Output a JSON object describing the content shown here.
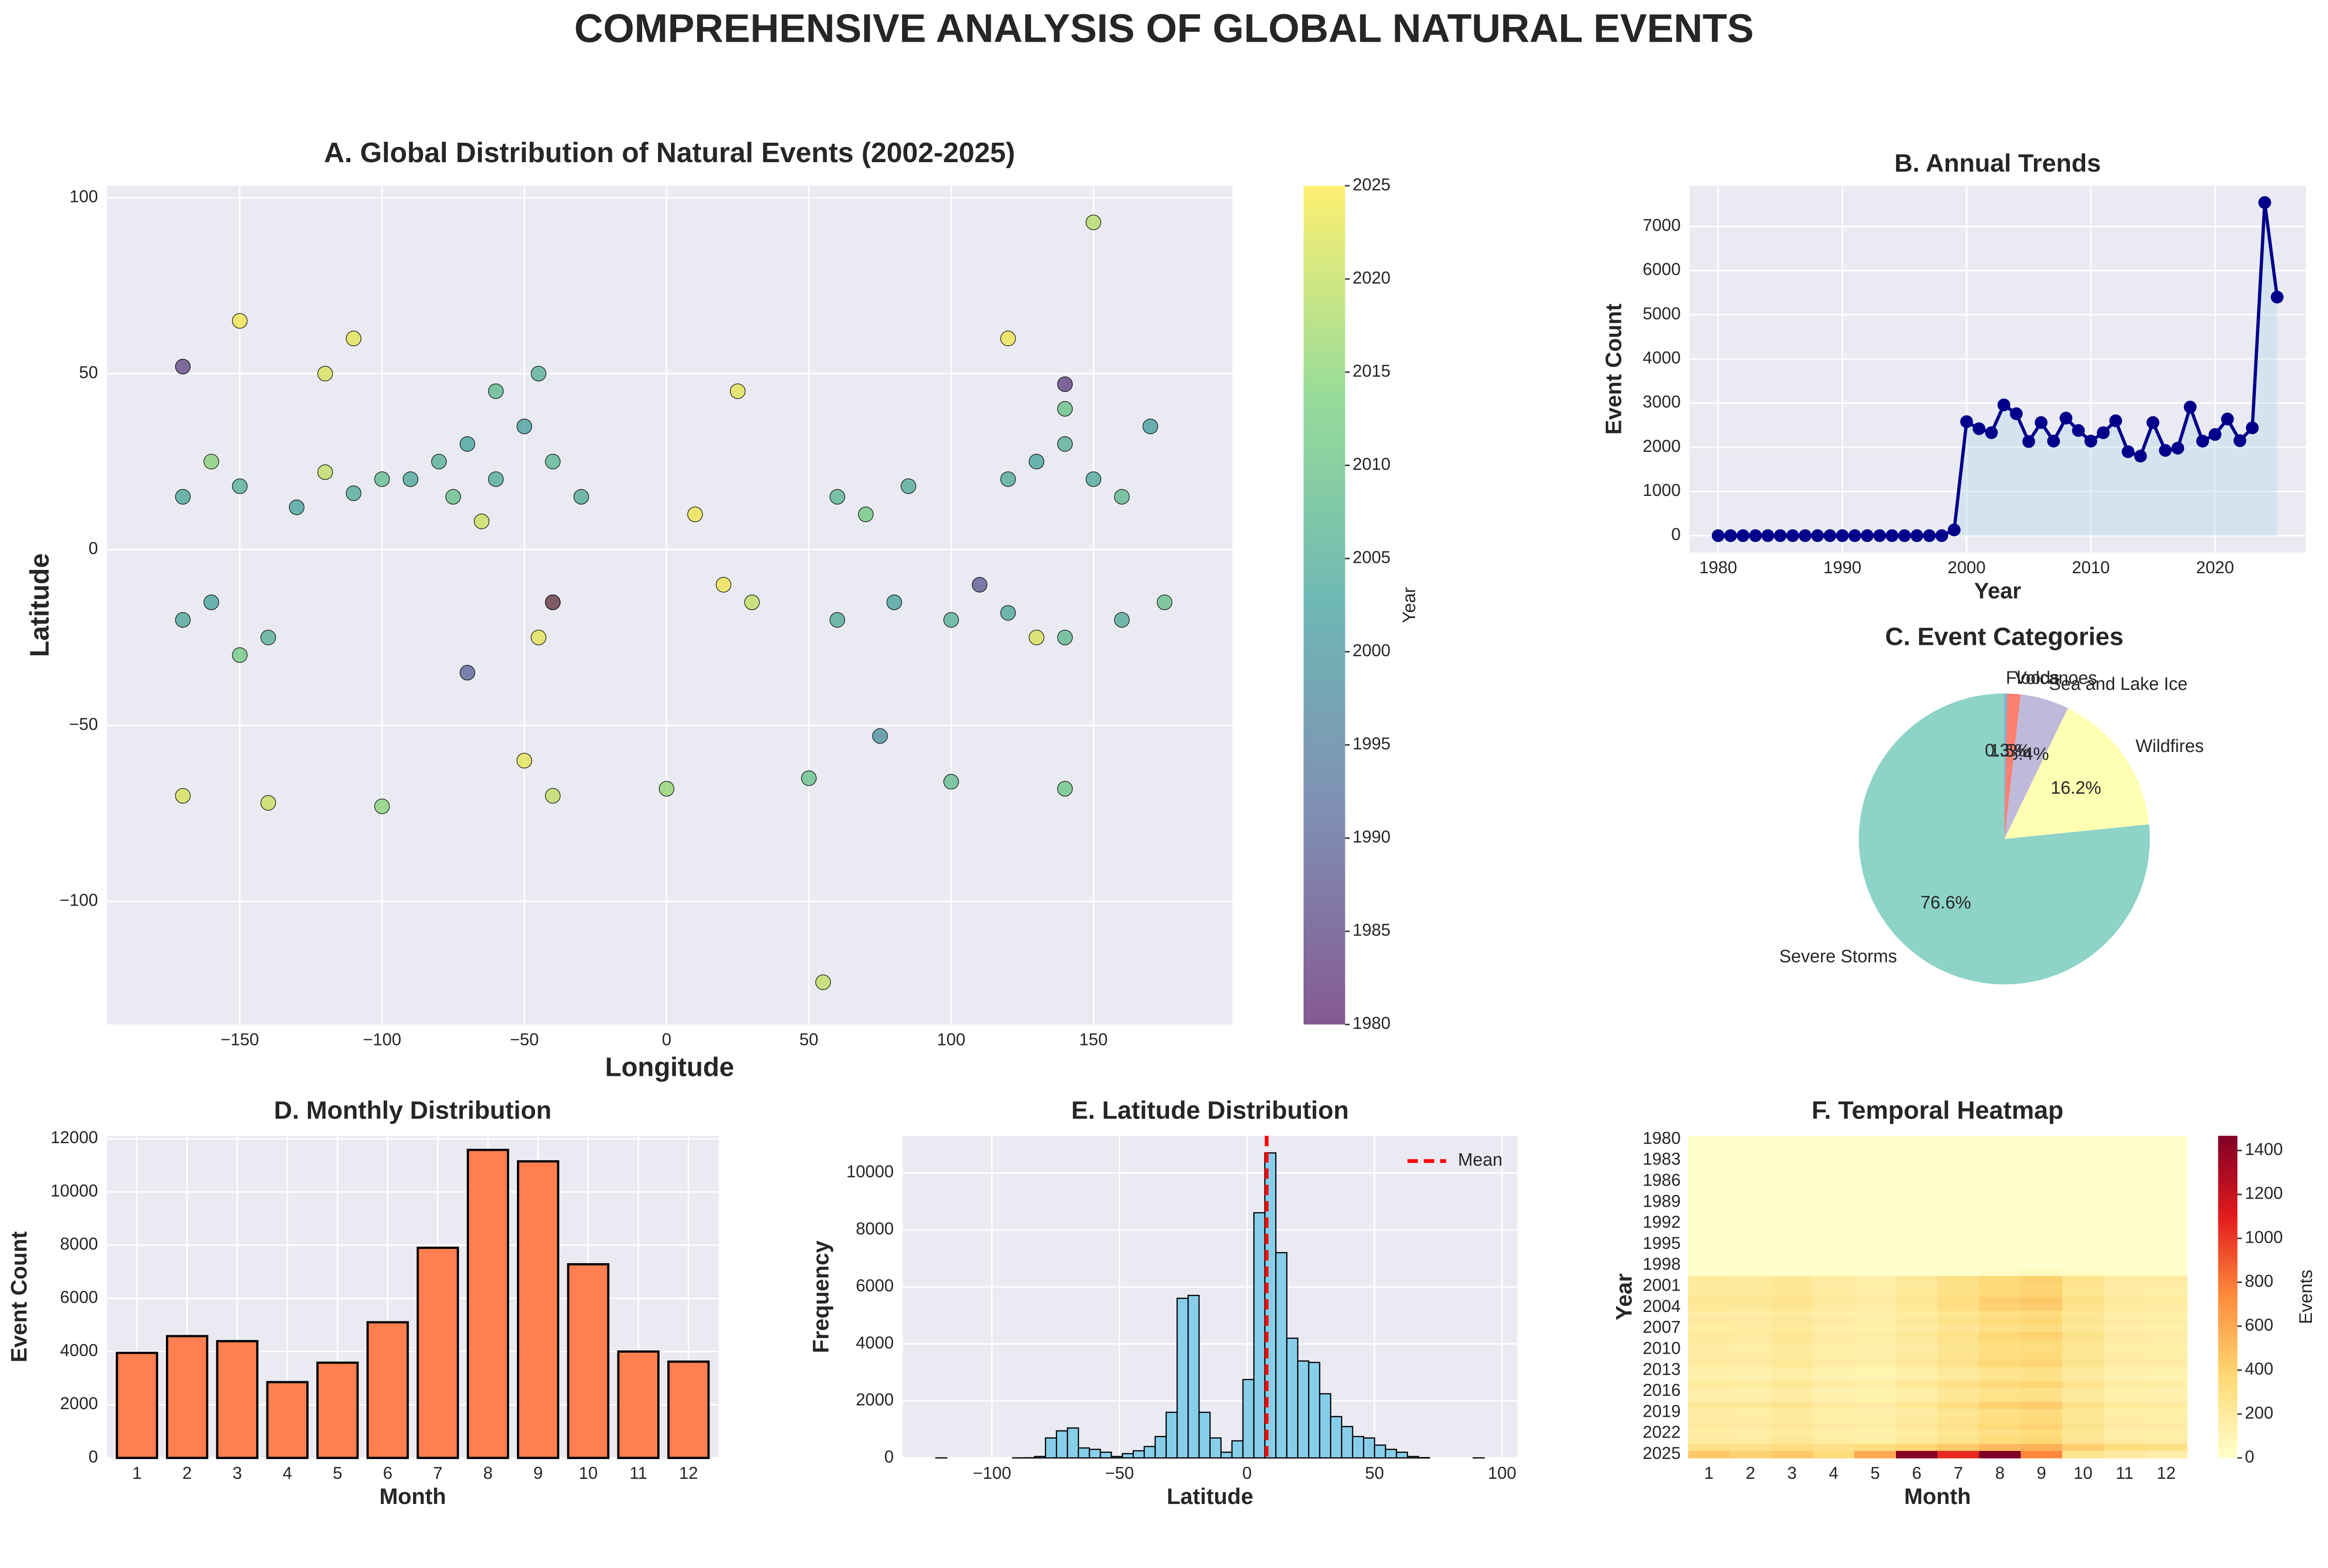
{
  "title": "COMPREHENSIVE ANALYSIS OF GLOBAL NATURAL EVENTS",
  "chart_data": [
    {
      "type": "scatter",
      "title": "A. Global Distribution of Natural Events (2002-2025)",
      "xlabel": "Longitude",
      "ylabel": "Latitude",
      "x": [
        -90,
        -80,
        -70,
        -60,
        -50,
        -40,
        -30,
        -60,
        -45,
        -75,
        -170,
        -150,
        -130,
        -110,
        -100,
        -160,
        -120,
        120,
        130,
        140,
        150,
        160,
        170,
        140,
        60,
        85,
        70,
        30,
        60,
        80,
        100,
        120,
        140,
        160,
        175,
        -170,
        -160,
        -140,
        -150,
        -120,
        -110,
        -150,
        -40,
        -45,
        20,
        25,
        120,
        130,
        -65,
        10,
        -170,
        -140,
        -100,
        -50,
        -40,
        0,
        50,
        100,
        140,
        -170,
        -40,
        -70,
        110,
        140,
        150,
        55,
        75
      ],
      "values": [
        20,
        25,
        30,
        20,
        35,
        25,
        15,
        45,
        50,
        15,
        15,
        18,
        12,
        16,
        20,
        25,
        22,
        20,
        25,
        30,
        20,
        15,
        35,
        40,
        15,
        18,
        10,
        -15,
        -20,
        -15,
        -20,
        -18,
        -25,
        -20,
        -15,
        -20,
        -15,
        -25,
        -30,
        50,
        60,
        65,
        -15,
        -25,
        -10,
        45,
        60,
        -25,
        8,
        10,
        -70,
        -72,
        -73,
        -60,
        -70,
        -68,
        -65,
        -66,
        -68,
        52,
        -15,
        -35,
        -10,
        47,
        93,
        -123,
        -53
      ],
      "years": [
        2004,
        2006,
        2003,
        2005,
        2002,
        2007,
        2005,
        2008,
        2006,
        2010,
        2004,
        2006,
        2003,
        2005,
        2009,
        2015,
        2020,
        2005,
        2003,
        2006,
        2004,
        2008,
        2002,
        2010,
        2007,
        2005,
        2012,
        2020,
        2005,
        2003,
        2006,
        2004,
        2008,
        2005,
        2010,
        2004,
        2003,
        2006,
        2012,
        2022,
        2023,
        2024,
        2024,
        2023,
        2024,
        2023,
        2024,
        2022,
        2021,
        2024,
        2022,
        2021,
        2015,
        2023,
        2020,
        2016,
        2010,
        2009,
        2011,
        1985,
        1982,
        1990,
        1988,
        1984,
        2019,
        2020,
        1999
      ],
      "colormap": "viridis",
      "clim": [
        1980,
        2025
      ],
      "colorbar_label": "Year",
      "cticks": [
        1980,
        1985,
        1990,
        1995,
        2000,
        2005,
        2010,
        2015,
        2020,
        2025
      ],
      "xlim": [
        -196.7,
        198.8
      ],
      "ylim": [
        -135,
        103.4
      ],
      "xticks": [
        {
          "value": -150,
          "label": "−150"
        },
        {
          "value": -100,
          "label": "−100"
        },
        {
          "value": -50,
          "label": "−50"
        },
        0,
        50,
        100,
        150
      ],
      "yticks": [
        {
          "value": -100,
          "label": "−100"
        },
        {
          "value": -50,
          "label": "−50"
        },
        0,
        50,
        100
      ],
      "grid": true
    },
    {
      "type": "line",
      "title": "B. Annual Trends",
      "xlabel": "Year",
      "ylabel": "Event Count",
      "color": "#00008b",
      "area": true,
      "x": [
        1980,
        1981,
        1982,
        1983,
        1984,
        1985,
        1986,
        1987,
        1988,
        1989,
        1990,
        1991,
        1992,
        1993,
        1994,
        1995,
        1996,
        1997,
        1998,
        1999,
        2000,
        2001,
        2002,
        2003,
        2004,
        2005,
        2006,
        2007,
        2008,
        2009,
        2010,
        2011,
        2012,
        2013,
        2014,
        2015,
        2016,
        2017,
        2018,
        2019,
        2020,
        2021,
        2022,
        2023,
        2024,
        2025
      ],
      "values": [
        0,
        0,
        0,
        0,
        0,
        0,
        0,
        0,
        0,
        0,
        0,
        0,
        0,
        0,
        0,
        0,
        0,
        0,
        0,
        130,
        2580,
        2420,
        2330,
        2960,
        2760,
        2130,
        2560,
        2140,
        2660,
        2380,
        2140,
        2330,
        2600,
        1900,
        1800,
        2560,
        1930,
        1980,
        2910,
        2140,
        2290,
        2640,
        2150,
        2440,
        7540,
        5400
      ],
      "xlim": [
        1977.7,
        2027.3
      ],
      "ylim": [
        -380,
        7920
      ],
      "xticks": [
        1980,
        1990,
        2000,
        2010,
        2020
      ],
      "yticks": [
        0,
        1000,
        2000,
        3000,
        4000,
        5000,
        6000,
        7000
      ],
      "grid": true
    },
    {
      "type": "pie",
      "title": "C. Event Categories",
      "categories": [
        "Severe Storms",
        "Wildfires",
        "Sea and Lake Ice",
        "Volcanoes",
        "Floods"
      ],
      "values": [
        76.6,
        16.2,
        5.4,
        1.5,
        0.3
      ],
      "value_labels": [
        "76.6%",
        "16.2%",
        "5.4%",
        "1.5%",
        "0.3%"
      ],
      "colors": [
        "#8dd3c7",
        "#ffffb3",
        "#bebada",
        "#fb8072",
        "#80b1d3"
      ]
    },
    {
      "type": "bar",
      "title": "D. Monthly Distribution",
      "xlabel": "Month",
      "ylabel": "Event Count",
      "color": "#ff7f50",
      "categories": [
        "1",
        "2",
        "3",
        "4",
        "5",
        "6",
        "7",
        "8",
        "9",
        "10",
        "11",
        "12"
      ],
      "values": [
        3950,
        4580,
        4390,
        2850,
        3580,
        5100,
        7900,
        11580,
        11150,
        7280,
        4000,
        3620
      ],
      "ylim": [
        0,
        12110
      ],
      "yticks": [
        0,
        2000,
        4000,
        6000,
        8000,
        10000,
        12000
      ],
      "grid": true
    },
    {
      "type": "histogram",
      "title": "E. Latitude Distribution",
      "xlabel": "Latitude",
      "ylabel": "Frequency",
      "color": "#87ceeb",
      "bins": [
        -122,
        -117.7,
        -113.4,
        -109.1,
        -104.8,
        -100.5,
        -96.2,
        -91.9,
        -87.6,
        -83.3,
        -79,
        -74.7,
        -70.4,
        -66.1,
        -61.8,
        -57.5,
        -53.2,
        -48.9,
        -44.6,
        -40.3,
        -36,
        -31.7,
        -27.4,
        -23.1,
        -18.8,
        -14.5,
        -10.2,
        -5.9,
        -1.6,
        2.7,
        7,
        11.3,
        15.6,
        19.9,
        24.2,
        28.5,
        32.8,
        37.1,
        41.4,
        45.7,
        50,
        54.3,
        58.6,
        62.9,
        67.2,
        71.5,
        75.8,
        80.1,
        84.4,
        88.7,
        93
      ],
      "values": [
        1,
        0,
        0,
        0,
        0,
        0,
        0,
        2,
        5,
        50,
        700,
        950,
        1050,
        350,
        300,
        200,
        50,
        150,
        250,
        400,
        750,
        1600,
        5600,
        5700,
        1600,
        700,
        200,
        600,
        2750,
        8600,
        10700,
        7200,
        4200,
        3400,
        3350,
        2250,
        1450,
        1100,
        750,
        700,
        450,
        300,
        200,
        50,
        10,
        0,
        0,
        0,
        0,
        2
      ],
      "mean_line": {
        "name": "Mean",
        "value": 7.7,
        "color": "#ff0000"
      },
      "legend": "upper right",
      "xlim": [
        -135,
        106
      ],
      "ylim": [
        0,
        11300
      ],
      "xticks": [
        {
          "value": -100,
          "label": "−100"
        },
        {
          "value": -50,
          "label": "−50"
        },
        0,
        50,
        100
      ],
      "yticks": [
        0,
        2000,
        4000,
        6000,
        8000,
        10000
      ],
      "grid": true
    },
    {
      "type": "heatmap",
      "title": "F. Temporal Heatmap",
      "xlabel": "Month",
      "ylabel": "Year",
      "x_categories": [
        "1",
        "2",
        "3",
        "4",
        "5",
        "6",
        "7",
        "8",
        "9",
        "10",
        "11",
        "12"
      ],
      "y_categories": [
        1980,
        null,
        null,
        1983,
        null,
        null,
        1986,
        null,
        null,
        1989,
        null,
        null,
        1992,
        null,
        null,
        1995,
        null,
        null,
        1998,
        null,
        null,
        2001,
        null,
        null,
        2004,
        null,
        null,
        2007,
        null,
        null,
        2010,
        null,
        null,
        2013,
        null,
        null,
        2016,
        null,
        null,
        2019,
        null,
        null,
        2022,
        null,
        null,
        2025
      ],
      "values": [
        [
          0,
          0,
          0,
          0,
          0,
          0,
          0,
          0,
          0,
          0,
          0,
          0
        ],
        [
          0,
          0,
          0,
          0,
          0,
          0,
          0,
          0,
          0,
          0,
          0,
          0
        ],
        [
          0,
          0,
          0,
          0,
          0,
          0,
          0,
          0,
          0,
          0,
          0,
          0
        ],
        [
          0,
          0,
          0,
          0,
          0,
          0,
          0,
          0,
          0,
          0,
          0,
          0
        ],
        [
          0,
          0,
          0,
          0,
          0,
          0,
          0,
          0,
          0,
          0,
          0,
          0
        ],
        [
          0,
          0,
          0,
          0,
          0,
          0,
          0,
          0,
          0,
          0,
          0,
          0
        ],
        [
          0,
          0,
          0,
          0,
          0,
          0,
          0,
          0,
          0,
          0,
          0,
          0
        ],
        [
          0,
          0,
          0,
          0,
          0,
          0,
          0,
          0,
          0,
          0,
          0,
          0
        ],
        [
          0,
          0,
          0,
          0,
          0,
          0,
          0,
          0,
          0,
          0,
          0,
          0
        ],
        [
          0,
          0,
          0,
          0,
          0,
          0,
          0,
          0,
          0,
          0,
          0,
          0
        ],
        [
          0,
          0,
          0,
          0,
          0,
          0,
          0,
          0,
          0,
          0,
          0,
          0
        ],
        [
          0,
          0,
          0,
          0,
          0,
          0,
          0,
          0,
          0,
          0,
          0,
          0
        ],
        [
          0,
          0,
          0,
          0,
          0,
          0,
          0,
          0,
          0,
          0,
          0,
          0
        ],
        [
          0,
          0,
          0,
          0,
          0,
          0,
          0,
          0,
          0,
          0,
          0,
          0
        ],
        [
          0,
          0,
          0,
          0,
          0,
          0,
          0,
          0,
          0,
          0,
          0,
          0
        ],
        [
          0,
          0,
          0,
          0,
          0,
          0,
          0,
          0,
          0,
          0,
          0,
          0
        ],
        [
          0,
          0,
          0,
          0,
          0,
          0,
          0,
          0,
          0,
          0,
          0,
          0
        ],
        [
          0,
          0,
          0,
          0,
          0,
          0,
          0,
          0,
          0,
          0,
          0,
          0
        ],
        [
          0,
          0,
          0,
          0,
          0,
          0,
          0,
          0,
          0,
          0,
          0,
          0
        ],
        [
          0,
          0,
          0,
          0,
          0,
          0,
          10,
          30,
          50,
          30,
          10,
          0
        ],
        [
          210,
          190,
          230,
          180,
          160,
          220,
          290,
          360,
          400,
          270,
          190,
          180
        ],
        [
          190,
          200,
          240,
          170,
          150,
          200,
          280,
          350,
          380,
          260,
          180,
          170
        ],
        [
          200,
          210,
          220,
          190,
          170,
          230,
          300,
          340,
          390,
          250,
          170,
          160
        ],
        [
          240,
          220,
          260,
          200,
          180,
          240,
          320,
          420,
          450,
          300,
          200,
          190
        ],
        [
          230,
          210,
          250,
          190,
          170,
          230,
          310,
          400,
          430,
          290,
          190,
          180
        ],
        [
          170,
          160,
          190,
          150,
          140,
          180,
          240,
          300,
          330,
          230,
          160,
          150
        ],
        [
          200,
          190,
          230,
          180,
          160,
          210,
          280,
          340,
          380,
          260,
          180,
          170
        ],
        [
          170,
          180,
          200,
          150,
          140,
          180,
          240,
          300,
          320,
          220,
          150,
          140
        ],
        [
          210,
          200,
          240,
          180,
          170,
          220,
          290,
          370,
          400,
          280,
          190,
          180
        ],
        [
          190,
          180,
          220,
          170,
          160,
          200,
          270,
          330,
          360,
          250,
          170,
          160
        ],
        [
          170,
          160,
          190,
          150,
          140,
          180,
          250,
          310,
          330,
          230,
          160,
          150
        ],
        [
          180,
          170,
          210,
          160,
          150,
          200,
          260,
          330,
          350,
          240,
          170,
          160
        ],
        [
          200,
          190,
          230,
          180,
          170,
          220,
          290,
          360,
          390,
          270,
          190,
          180
        ],
        [
          150,
          140,
          170,
          130,
          120,
          160,
          210,
          270,
          290,
          200,
          140,
          130
        ],
        [
          140,
          130,
          160,
          120,
          110,
          150,
          200,
          260,
          280,
          190,
          130,
          120
        ],
        [
          200,
          190,
          230,
          180,
          160,
          220,
          290,
          350,
          380,
          260,
          180,
          170
        ],
        [
          150,
          140,
          170,
          130,
          120,
          160,
          220,
          270,
          290,
          200,
          140,
          130
        ],
        [
          150,
          150,
          170,
          130,
          120,
          170,
          220,
          280,
          300,
          200,
          140,
          130
        ],
        [
          230,
          220,
          260,
          200,
          180,
          240,
          320,
          400,
          430,
          290,
          200,
          190
        ],
        [
          170,
          160,
          190,
          150,
          140,
          180,
          240,
          300,
          330,
          230,
          160,
          150
        ],
        [
          180,
          170,
          200,
          160,
          150,
          190,
          260,
          320,
          350,
          240,
          170,
          160
        ],
        [
          200,
          190,
          230,
          180,
          170,
          220,
          290,
          360,
          390,
          270,
          190,
          180
        ],
        [
          170,
          160,
          190,
          150,
          140,
          180,
          240,
          300,
          330,
          230,
          160,
          150
        ],
        [
          190,
          180,
          220,
          170,
          160,
          210,
          270,
          340,
          370,
          250,
          180,
          170
        ],
        [
          300,
          280,
          320,
          290,
          330,
          380,
          450,
          520,
          560,
          420,
          330,
          300
        ],
        [
          450,
          400,
          450,
          350,
          600,
          1450,
          1050,
          1470,
          750,
          250,
          200,
          150
        ]
      ],
      "colormap": "YlOrRd",
      "clim": [
        0,
        1467
      ],
      "colorbar_label": "Events",
      "cticks": [
        0,
        200,
        400,
        600,
        800,
        1000,
        1200,
        1400
      ]
    }
  ]
}
